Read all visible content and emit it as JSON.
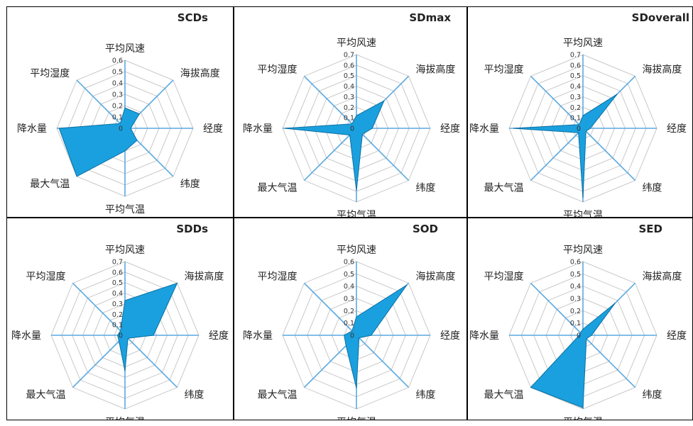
{
  "chart_data": [
    {
      "type": "radar",
      "title": "SCDs",
      "axes": [
        "平均风速",
        "海拔高度",
        "经度",
        "纬度",
        "平均气温",
        "最大气温",
        "降水量",
        "平均湿度"
      ],
      "tick_labels": [
        "0",
        "0.1",
        "0.2",
        "0.3",
        "0.4",
        "0.5",
        "0.6"
      ],
      "rmax": 0.6,
      "values": [
        0.18,
        0.18,
        0.05,
        0.15,
        0.2,
        0.65,
        0.58,
        0.06
      ]
    },
    {
      "type": "radar",
      "title": "SDmax",
      "axes": [
        "平均风速",
        "海拔高度",
        "经度",
        "纬度",
        "平均气温",
        "最大气温",
        "降水量",
        "平均湿度"
      ],
      "tick_labels": [
        "0",
        "0.1",
        "0.2",
        "0.3",
        "0.4",
        "0.5",
        "0.6",
        "0.7"
      ],
      "rmax": 0.7,
      "values": [
        0.12,
        0.37,
        0.15,
        0.08,
        0.59,
        0.09,
        0.68,
        0.06
      ]
    },
    {
      "type": "radar",
      "title": "SDoverall",
      "axes": [
        "平均风速",
        "海拔高度",
        "经度",
        "纬度",
        "平均气温",
        "最大气温",
        "降水量",
        "平均湿度"
      ],
      "tick_labels": [
        "0",
        "0.1",
        "0.2",
        "0.3",
        "0.4",
        "0.5",
        "0.6",
        "0.7"
      ],
      "rmax": 0.7,
      "values": [
        0.12,
        0.46,
        0.07,
        0.04,
        0.66,
        0.06,
        0.66,
        0.05
      ]
    },
    {
      "type": "radar",
      "title": "SDDs",
      "axes": [
        "平均风速",
        "海拔高度",
        "经度",
        "纬度",
        "平均气温",
        "最大气温",
        "降水量",
        "平均湿度"
      ],
      "tick_labels": [
        "0",
        "0.1",
        "0.2",
        "0.3",
        "0.4",
        "0.5",
        "0.6",
        "0.7"
      ],
      "rmax": 0.7,
      "values": [
        0.33,
        0.7,
        0.27,
        0.04,
        0.34,
        0.08,
        0.07,
        0.06
      ]
    },
    {
      "type": "radar",
      "title": "SOD",
      "axes": [
        "平均风速",
        "海拔高度",
        "经度",
        "纬度",
        "平均气温",
        "最大气温",
        "降水量",
        "平均湿度"
      ],
      "tick_labels": [
        "0",
        "0.1",
        "0.2",
        "0.3",
        "0.4",
        "0.5",
        "0.6"
      ],
      "rmax": 0.6,
      "values": [
        0.15,
        0.58,
        0.12,
        0.03,
        0.43,
        0.12,
        0.1,
        0.05
      ]
    },
    {
      "type": "radar",
      "title": "SED",
      "axes": [
        "平均风速",
        "海拔高度",
        "经度",
        "纬度",
        "平均气温",
        "最大气温",
        "降水量",
        "平均湿度"
      ],
      "tick_labels": [
        "0",
        "0.1",
        "0.2",
        "0.3",
        "0.4",
        "0.5",
        "0.6"
      ],
      "rmax": 0.6,
      "values": [
        0.05,
        0.37,
        0.07,
        0.04,
        0.59,
        0.66,
        0.03,
        0.03
      ]
    }
  ],
  "style": {
    "fill_color": "#1aa0de",
    "stroke_color": "#0b6fa3",
    "axis_color": "#5aa9e0",
    "grid_color": "#c8c8c8",
    "label_color": "#222222"
  }
}
